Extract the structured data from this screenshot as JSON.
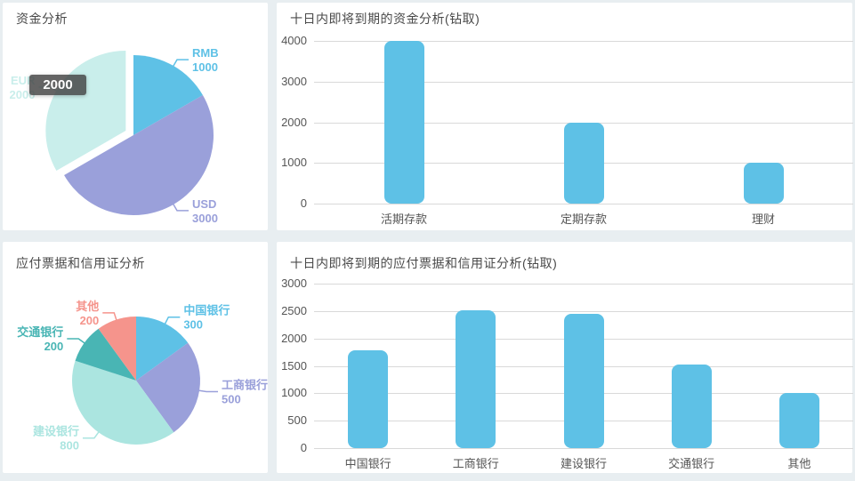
{
  "page": {
    "background_color": "#e8eef1",
    "panel_color": "#ffffff"
  },
  "colors": {
    "bar_accent": "#5ec1e6",
    "grid_line": "#d9d9d9",
    "axis_text": "#555555",
    "title_text": "#4a4a4a",
    "tooltip_bg": "rgba(66,66,66,0.82)",
    "tooltip_text": "#ffffff"
  },
  "chart_data": [
    {
      "id": "funds-pie",
      "type": "pie",
      "title": "资金分析",
      "legend_position": "none",
      "slices": [
        {
          "label": "RMB",
          "value": 1000,
          "color": "#5ec1e6",
          "selected": false
        },
        {
          "label": "USD",
          "value": 3000,
          "color": "#9aa0da",
          "selected": false
        },
        {
          "label": "EUR",
          "value": 2000,
          "color": "#c9eeeb",
          "selected": true
        }
      ],
      "tooltip": {
        "visible": true,
        "text": "2000"
      }
    },
    {
      "id": "funds-due-bar",
      "type": "bar",
      "title": "十日内即将到期的资金分析(钻取)",
      "categories": [
        "活期存款",
        "定期存款",
        "理财"
      ],
      "values": [
        4000,
        2000,
        1000
      ],
      "ylim": [
        0,
        4000
      ],
      "yticks": [
        0,
        1000,
        2000,
        3000,
        4000
      ],
      "bar_color": "#5ec1e6",
      "grid": true,
      "xlabel": "",
      "ylabel": ""
    },
    {
      "id": "payables-pie",
      "type": "pie",
      "title": "应付票据和信用证分析",
      "legend_position": "none",
      "slices": [
        {
          "label": "中国银行",
          "value": 300,
          "color": "#5ec1e6",
          "selected": false
        },
        {
          "label": "工商银行",
          "value": 500,
          "color": "#9aa0da",
          "selected": false
        },
        {
          "label": "建设银行",
          "value": 800,
          "color": "#abe5e0",
          "selected": false
        },
        {
          "label": "交通银行",
          "value": 200,
          "color": "#49b5b4",
          "selected": false
        },
        {
          "label": "其他",
          "value": 200,
          "color": "#f5948c",
          "selected": false
        }
      ],
      "tooltip": {
        "visible": false,
        "text": ""
      }
    },
    {
      "id": "payables-due-bar",
      "type": "bar",
      "title": "十日内即将到期的应付票据和信用证分析(钻取)",
      "categories": [
        "中国银行",
        "工商银行",
        "建设银行",
        "交通银行",
        "其他"
      ],
      "values": [
        1780,
        2520,
        2450,
        1520,
        1000
      ],
      "ylim": [
        0,
        3000
      ],
      "yticks": [
        0,
        500,
        1000,
        1500,
        2000,
        2500,
        3000
      ],
      "bar_color": "#5ec1e6",
      "grid": true,
      "xlabel": "",
      "ylabel": ""
    }
  ]
}
